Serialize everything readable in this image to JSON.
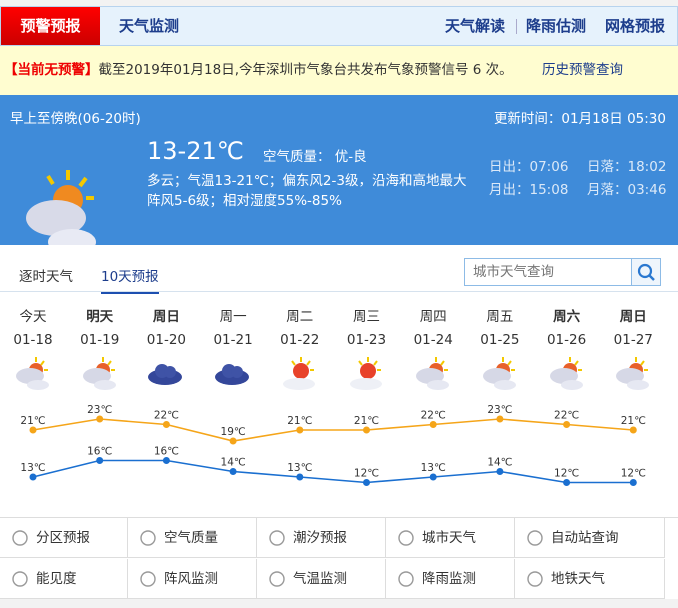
{
  "nav": {
    "warning_tab": "预警预报",
    "monitor_tab": "天气监测",
    "right": [
      "天气解读",
      "降雨估测",
      "网格预报"
    ]
  },
  "warning": {
    "status": "【当前无预警】",
    "text": "截至2019年01月18日,今年深圳市气象台共发布气象预警信号 6 次。",
    "history_link": "历史预警查询"
  },
  "now": {
    "period": "早上至傍晚(06-20时)",
    "update": "更新时间：01月18日 05:30",
    "temp": "13-21℃",
    "aqi": "空气质量： 优-良",
    "desc1": "多云；气温13-21℃；偏东风2-3级，沿海和高地最大",
    "desc2": "阵风5-6级；相对湿度55%-85%",
    "sunrise": "日出：07:06",
    "sunset": "日落：18:02",
    "moonrise": "月出：15:08",
    "moonset": "月落：03:46",
    "icon": "partly-cloudy-icon"
  },
  "tabs": {
    "hourly": "逐时天气",
    "tenday": "10天预报",
    "search_placeholder": "城市天气查询"
  },
  "chart_data": {
    "type": "line",
    "categories": [
      "今天",
      "明天",
      "周日",
      "周一",
      "周二",
      "周三",
      "周四",
      "周五",
      "周六",
      "周日"
    ],
    "dates": [
      "01-18",
      "01-19",
      "01-20",
      "01-21",
      "01-22",
      "01-23",
      "01-24",
      "01-25",
      "01-26",
      "01-27"
    ],
    "bold": [
      false,
      true,
      true,
      false,
      false,
      false,
      false,
      false,
      true,
      true
    ],
    "icons": [
      "partly-cloudy",
      "partly-cloudy",
      "overcast",
      "overcast",
      "sunny-cloudy",
      "sunny-cloudy",
      "partly-cloudy",
      "partly-cloudy",
      "partly-cloudy",
      "partly-cloudy"
    ],
    "series": [
      {
        "values": [
          21,
          23,
          22,
          19,
          21,
          21,
          22,
          23,
          22,
          21
        ],
        "color": "#f5a519"
      },
      {
        "values": [
          13,
          16,
          16,
          14,
          13,
          12,
          13,
          14,
          12,
          12
        ],
        "color": "#1a6fd0"
      }
    ],
    "unit": "℃"
  },
  "links": [
    [
      "分区预报",
      "空气质量",
      "潮汐预报",
      "城市天气",
      "自动站查询"
    ],
    [
      "能见度",
      "阵风监测",
      "气温监测",
      "降雨监测",
      "地铁天气"
    ]
  ]
}
